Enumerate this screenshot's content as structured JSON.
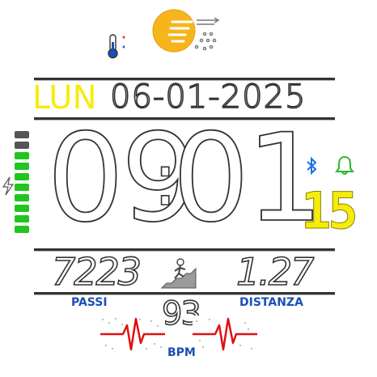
{
  "weather": {
    "icon": "sun-cloud-rain-icon",
    "thermometer_icon": "thermometer-icon"
  },
  "date": {
    "day": "LUN",
    "date": "06-01-2025"
  },
  "time": {
    "hours": "09",
    "separator": ":",
    "minutes": "01"
  },
  "status": {
    "bluetooth_icon": "bluetooth-icon",
    "alarm_icon": "bell-icon",
    "seconds": "15"
  },
  "battery": {
    "icon": "charging-bolt-icon",
    "segments_total": 10,
    "segments_on": 8,
    "color_on": "#22c51f",
    "color_off": "#555555"
  },
  "steps": {
    "value": "7223",
    "label": "PASSI",
    "icon": "stairs-climber-icon"
  },
  "distance": {
    "value": "1.27",
    "label": "DISTANZA"
  },
  "heart": {
    "value": "93",
    "label": "BPM",
    "icon": "heartbeat-icon"
  },
  "colors": {
    "day": "#f5ec0c",
    "seconds": "#f5ec0c",
    "labels": "#1a4fb5",
    "bluetooth": "#1e6fe0",
    "alarm": "#2fb52c",
    "pulse": "#e01010"
  }
}
